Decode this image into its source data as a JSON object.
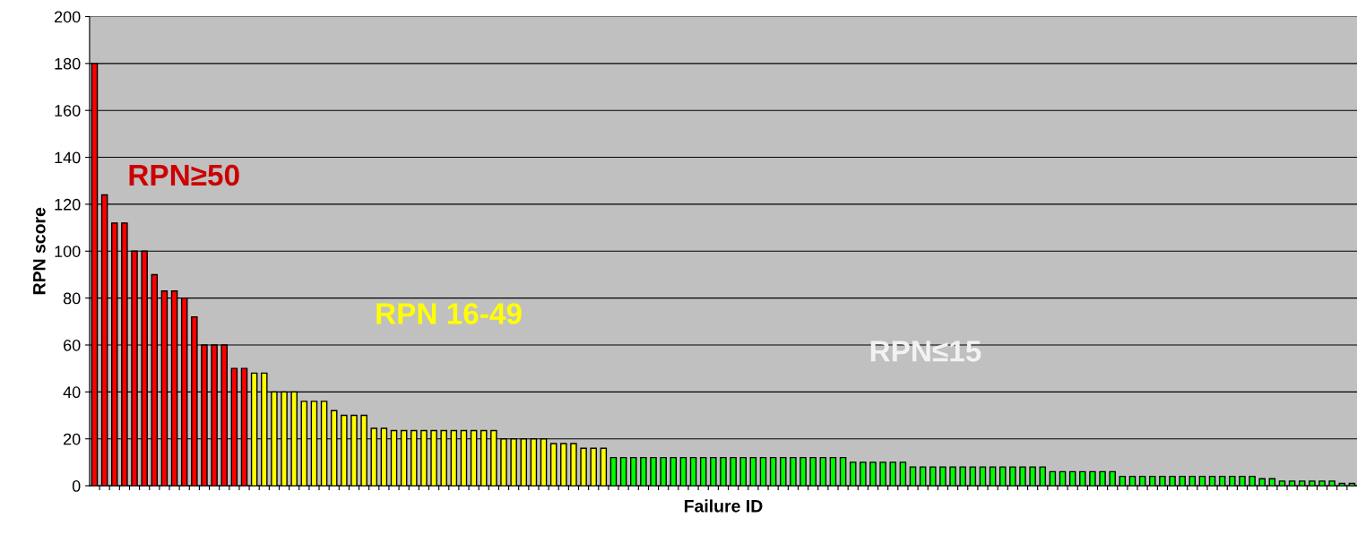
{
  "chart_data": {
    "type": "bar",
    "xlabel": "Failure ID",
    "ylabel": "RPN score",
    "categories": [
      null,
      null,
      null,
      null,
      null,
      null,
      null,
      null,
      null,
      null,
      null,
      null,
      null,
      null,
      null,
      null,
      null,
      null,
      null,
      null,
      null,
      null,
      null,
      null,
      null,
      null,
      null,
      null,
      null,
      null,
      null,
      null,
      null,
      null,
      null,
      null,
      null,
      null,
      null,
      null,
      null,
      null,
      null,
      null,
      null,
      null,
      null,
      null,
      null,
      null,
      null,
      null,
      null,
      null,
      null,
      null,
      null,
      null,
      null,
      null,
      null,
      null,
      null,
      null,
      null,
      null,
      null,
      null,
      null,
      null,
      null,
      null,
      null,
      null,
      null,
      null,
      null,
      null,
      null,
      null,
      null,
      null,
      null,
      null,
      null,
      null,
      null,
      null,
      null,
      null,
      null,
      null,
      null,
      null,
      null,
      null,
      null,
      null,
      null,
      null,
      null,
      null,
      null,
      null,
      null,
      null,
      null,
      null,
      null,
      null,
      null,
      null,
      null,
      null,
      null,
      null,
      null,
      null,
      null,
      null,
      null,
      null,
      null,
      null,
      null,
      null,
      null
    ],
    "values": [
      180,
      124,
      112,
      112,
      100,
      100,
      90,
      83,
      83,
      80,
      72,
      60,
      60,
      60,
      50,
      50,
      48,
      48,
      40,
      40,
      40,
      36,
      36,
      36,
      32,
      30,
      30,
      30,
      24.5,
      24.5,
      23.5,
      23.5,
      23.5,
      23.5,
      23.5,
      23.5,
      23.5,
      23.5,
      23.5,
      23.5,
      23.5,
      20,
      20,
      20,
      20,
      20,
      18,
      18,
      18,
      16,
      16,
      16,
      12,
      12,
      12,
      12,
      12,
      12,
      12,
      12,
      12,
      12,
      12,
      12,
      12,
      12,
      12,
      12,
      12,
      12,
      12,
      12,
      12,
      12,
      12,
      12,
      10,
      10,
      10,
      10,
      10,
      10,
      8,
      8,
      8,
      8,
      8,
      8,
      8,
      8,
      8,
      8,
      8,
      8,
      8,
      8,
      6,
      6,
      6,
      6,
      6,
      6,
      6,
      4,
      4,
      4,
      4,
      4,
      4,
      4,
      4,
      4,
      4,
      4,
      4,
      4,
      4,
      3,
      3,
      2,
      2,
      2,
      2,
      2,
      2,
      1,
      1
    ],
    "colors": [
      "#ff0000",
      "#ff0000",
      "#ff0000",
      "#ff0000",
      "#ff0000",
      "#ff0000",
      "#ff0000",
      "#ff0000",
      "#ff0000",
      "#ff0000",
      "#ff0000",
      "#ff0000",
      "#ff0000",
      "#ff0000",
      "#ff0000",
      "#ff0000",
      "#ffff00",
      "#ffff00",
      "#ffff00",
      "#ffff00",
      "#ffff00",
      "#ffff00",
      "#ffff00",
      "#ffff00",
      "#ffff00",
      "#ffff00",
      "#ffff00",
      "#ffff00",
      "#ffff00",
      "#ffff00",
      "#ffff00",
      "#ffff00",
      "#ffff00",
      "#ffff00",
      "#ffff00",
      "#ffff00",
      "#ffff00",
      "#ffff00",
      "#ffff00",
      "#ffff00",
      "#ffff00",
      "#ffff00",
      "#ffff00",
      "#ffff00",
      "#ffff00",
      "#ffff00",
      "#ffff00",
      "#ffff00",
      "#ffff00",
      "#ffff00",
      "#ffff00",
      "#ffff00",
      "#00ff00",
      "#00ff00",
      "#00ff00",
      "#00ff00",
      "#00ff00",
      "#00ff00",
      "#00ff00",
      "#00ff00",
      "#00ff00",
      "#00ff00",
      "#00ff00",
      "#00ff00",
      "#00ff00",
      "#00ff00",
      "#00ff00",
      "#00ff00",
      "#00ff00",
      "#00ff00",
      "#00ff00",
      "#00ff00",
      "#00ff00",
      "#00ff00",
      "#00ff00",
      "#00ff00",
      "#00ff00",
      "#00ff00",
      "#00ff00",
      "#00ff00",
      "#00ff00",
      "#00ff00",
      "#00ff00",
      "#00ff00",
      "#00ff00",
      "#00ff00",
      "#00ff00",
      "#00ff00",
      "#00ff00",
      "#00ff00",
      "#00ff00",
      "#00ff00",
      "#00ff00",
      "#00ff00",
      "#00ff00",
      "#00ff00",
      "#00ff00",
      "#00ff00",
      "#00ff00",
      "#00ff00",
      "#00ff00",
      "#00ff00",
      "#00ff00",
      "#00ff00",
      "#00ff00",
      "#00ff00",
      "#00ff00",
      "#00ff00",
      "#00ff00",
      "#00ff00",
      "#00ff00",
      "#00ff00",
      "#00ff00",
      "#00ff00",
      "#00ff00",
      "#00ff00",
      "#00ff00",
      "#00ff00",
      "#00ff00",
      "#00ff00",
      "#00ff00",
      "#00ff00",
      "#00ff00",
      "#00ff00",
      "#00ff00",
      "#00ff00",
      "#00ff00"
    ],
    "ylim": [
      0,
      200
    ],
    "yticks": [
      0,
      20,
      40,
      60,
      80,
      100,
      120,
      140,
      160,
      180,
      200
    ],
    "grid": "y",
    "legend": false,
    "annotations": [
      "RPN≥50",
      "RPN 16-49",
      "RPN≤15"
    ]
  }
}
